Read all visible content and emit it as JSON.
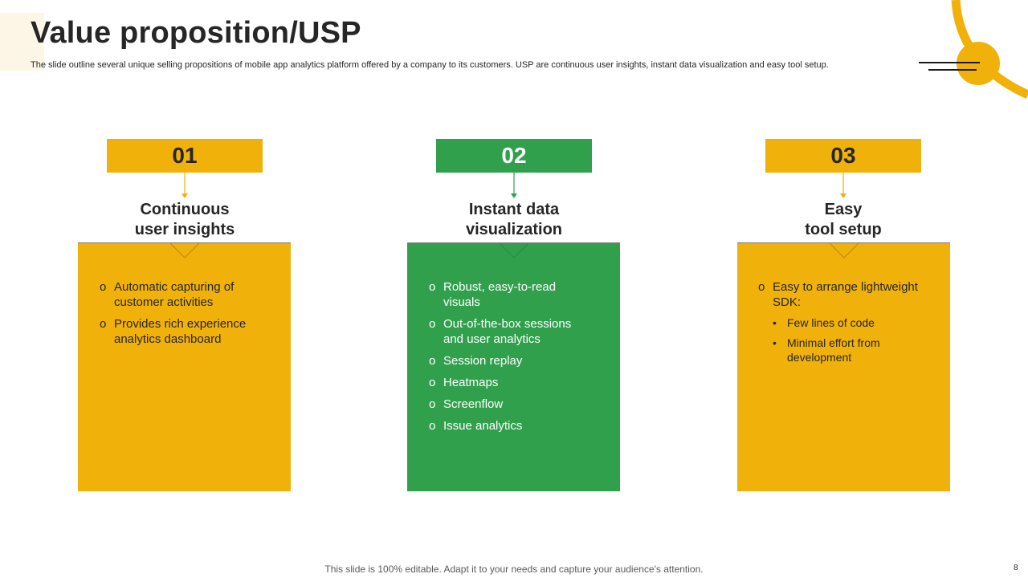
{
  "title": "Value proposition/USP",
  "subtitle": "The slide outline several unique selling propositions of mobile app analytics platform offered by a company to its customers. USP are continuous user insights, instant data visualization and easy tool setup.",
  "colors": {
    "yellow": "#f0b10b",
    "green": "#31a04d",
    "dark_text": "#262626",
    "white": "#ffffff"
  },
  "usps": [
    {
      "number": "01",
      "heading_line1": "Continuous",
      "heading_line2": "user insights",
      "color": "yellow",
      "bullets": [
        {
          "text": "Automatic capturing of customer activities"
        },
        {
          "text": "Provides rich experience analytics dashboard"
        }
      ]
    },
    {
      "number": "02",
      "heading_line1": "Instant data",
      "heading_line2": "visualization",
      "color": "green",
      "bullets": [
        {
          "text": "Robust, easy-to-read visuals"
        },
        {
          "text": "Out-of-the-box  sessions and user analytics"
        },
        {
          "text": "Session replay"
        },
        {
          "text": "Heatmaps"
        },
        {
          "text": "Screenflow"
        },
        {
          "text": "Issue  analytics"
        }
      ]
    },
    {
      "number": "03",
      "heading_line1": "Easy",
      "heading_line2": "tool setup",
      "color": "yellow",
      "bullets": [
        {
          "text": "Easy to arrange lightweight SDK:",
          "sub": [
            "Few lines of code",
            "Minimal effort from development"
          ]
        }
      ]
    }
  ],
  "bullet_marker": "o",
  "sub_bullet_marker": "•",
  "footer": "This slide is 100% editable. Adapt it to your needs and capture your audience's attention.",
  "page_number": "8"
}
